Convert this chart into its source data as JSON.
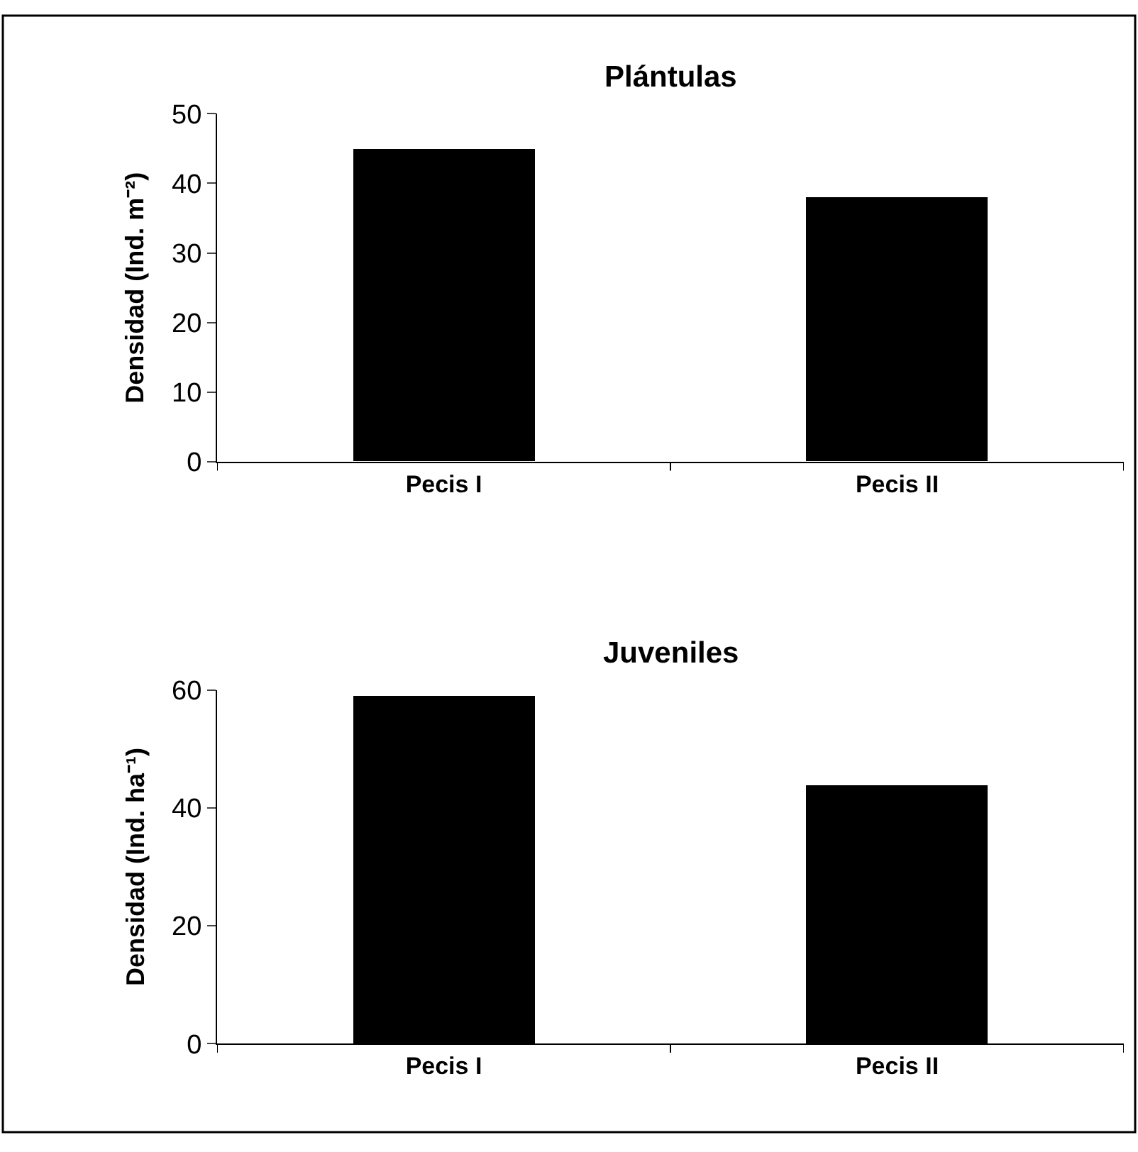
{
  "chart_data": [
    {
      "type": "bar",
      "title": "Plántulas",
      "ylabel": "Densidad (Ind. m⁻²)",
      "categories": [
        "Pecis I",
        "Pecis II"
      ],
      "values": [
        45,
        38
      ],
      "color": "#000000",
      "ylim": [
        0,
        50
      ],
      "yticks": [
        0,
        10,
        20,
        30,
        40,
        50
      ]
    },
    {
      "type": "bar",
      "title": "Juveniles",
      "ylabel": "Densidad (Ind. ha⁻¹)",
      "categories": [
        "Pecis I",
        "Pecis II"
      ],
      "values": [
        59,
        44
      ],
      "color": "#000000",
      "ylim": [
        0,
        60
      ],
      "yticks": [
        0,
        20,
        40,
        60
      ]
    }
  ]
}
